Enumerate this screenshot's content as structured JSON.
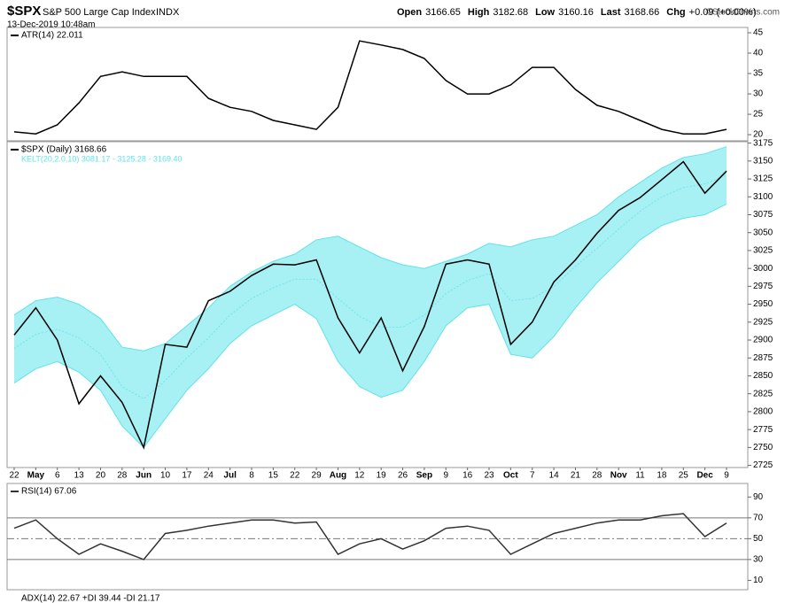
{
  "header": {
    "symbol": "$SPX",
    "name": "S&P 500 Large Cap Index",
    "exchange": "INDX",
    "date": "13-Dec-2019 10:48am",
    "quote": [
      {
        "label": "Open",
        "value": "3166.65"
      },
      {
        "label": "High",
        "value": "3182.68"
      },
      {
        "label": "Low",
        "value": "3160.16"
      },
      {
        "label": "Last",
        "value": "3168.66"
      },
      {
        "label": "Chg",
        "value": "+0.09 (+0.00%)"
      }
    ],
    "credit": "©StockCharts.com"
  },
  "chart_data": [
    {
      "type": "line",
      "legend": "ATR(14) 22.011",
      "color": "#000000",
      "values": [
        20.7,
        20.2,
        22.4,
        27.8,
        34.3,
        35.4,
        34.3,
        34.3,
        34.3,
        28.9,
        26.7,
        25.7,
        23.5,
        22.4,
        21.3,
        26.7,
        43.0,
        42.0,
        40.9,
        38.7,
        33.3,
        30.0,
        30.0,
        32.2,
        36.5,
        36.5,
        31.1,
        27.2,
        25.7,
        23.5,
        21.3,
        20.2,
        20.2,
        21.3
      ],
      "ylim": [
        18.5,
        46.3
      ],
      "yticks": [
        20,
        25,
        30,
        35,
        40,
        45
      ]
    },
    {
      "type": "line",
      "legend": "$SPX (Daily) 3168.66",
      "color": "#000000",
      "categories": [
        "22",
        "May",
        "6",
        "13",
        "20",
        "28",
        "Jun",
        "10",
        "17",
        "24",
        "Jul",
        "8",
        "15",
        "22",
        "29",
        "Aug",
        "12",
        "19",
        "26",
        "Sep",
        "9",
        "16",
        "23",
        "Oct",
        "7",
        "14",
        "21",
        "28",
        "Nov",
        "11",
        "18",
        "25",
        "Dec",
        "9"
      ],
      "values": [
        2907,
        2945,
        2900,
        2811,
        2850,
        2813,
        2750,
        2894,
        2890,
        2955,
        2968,
        2990,
        3006,
        3005,
        3012,
        2931,
        2882,
        2931,
        2857,
        2919,
        3006,
        3012,
        3006,
        2894,
        2925,
        2981,
        3012,
        3049,
        3081,
        3099,
        3124,
        3149,
        3105,
        3136
      ],
      "band": {
        "name": "KELT(20,2.0,10) 3081.17 - 3125.28 - 3169.40",
        "color": "#5fe3ea",
        "upper": [
          2935,
          2955,
          2960,
          2950,
          2930,
          2890,
          2885,
          2895,
          2920,
          2945,
          2975,
          2995,
          3010,
          3020,
          3040,
          3045,
          3030,
          3015,
          3005,
          3000,
          3010,
          3020,
          3035,
          3030,
          3040,
          3045,
          3060,
          3075,
          3100,
          3120,
          3140,
          3155,
          3160,
          3170
        ],
        "middle": [
          2888,
          2908,
          2915,
          2903,
          2880,
          2835,
          2818,
          2843,
          2875,
          2903,
          2935,
          2958,
          2973,
          2985,
          2985,
          2958,
          2933,
          2918,
          2918,
          2935,
          2965,
          2983,
          2993,
          2955,
          2958,
          2975,
          3003,
          3028,
          3055,
          3080,
          3100,
          3113,
          3118,
          3130
        ],
        "lower": [
          2840,
          2860,
          2870,
          2855,
          2830,
          2780,
          2750,
          2790,
          2830,
          2860,
          2895,
          2920,
          2935,
          2950,
          2930,
          2870,
          2835,
          2820,
          2830,
          2870,
          2920,
          2945,
          2950,
          2880,
          2875,
          2905,
          2945,
          2980,
          3010,
          3040,
          3060,
          3070,
          3075,
          3090
        ]
      },
      "ylim": [
        2722,
        3177
      ],
      "yticks": [
        2725,
        2750,
        2775,
        2800,
        2825,
        2850,
        2875,
        2900,
        2925,
        2950,
        2975,
        3000,
        3025,
        3050,
        3075,
        3100,
        3125,
        3150,
        3175
      ]
    },
    {
      "type": "line",
      "legend": "RSI(14) 67.06",
      "color": "#333333",
      "values": [
        60,
        68,
        50,
        35,
        45,
        38,
        30,
        55,
        58,
        62,
        65,
        68,
        68,
        65,
        66,
        35,
        45,
        50,
        40,
        48,
        60,
        62,
        58,
        35,
        45,
        55,
        60,
        65,
        68,
        68,
        72,
        74,
        52,
        65
      ],
      "ylim": [
        1,
        103
      ],
      "yticks": [
        10,
        30,
        50,
        70,
        90
      ],
      "reference_lines": [
        70,
        30
      ],
      "midline": 50
    }
  ],
  "adx_legend": "ADX(14) 22.67 +DI 39.44 -DI 21.17"
}
